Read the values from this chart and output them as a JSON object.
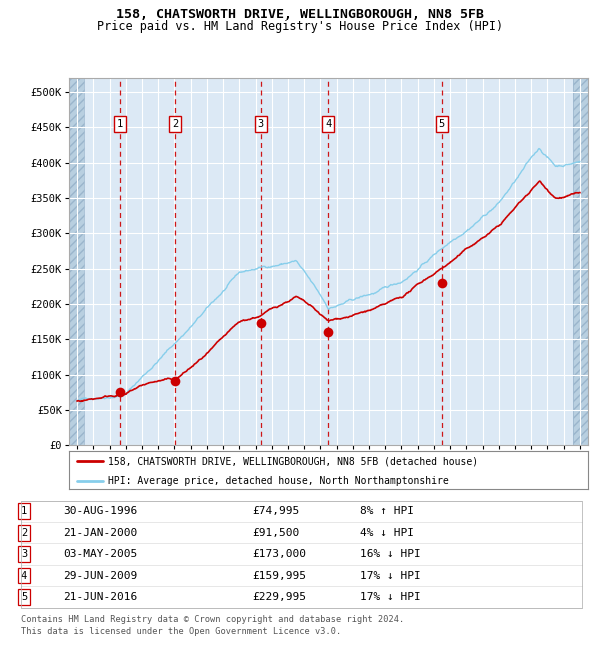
{
  "title1": "158, CHATSWORTH DRIVE, WELLINGBOROUGH, NN8 5FB",
  "title2": "Price paid vs. HM Land Registry's House Price Index (HPI)",
  "legend_line1": "158, CHATSWORTH DRIVE, WELLINGBOROUGH, NN8 5FB (detached house)",
  "legend_line2": "HPI: Average price, detached house, North Northamptonshire",
  "footer1": "Contains HM Land Registry data © Crown copyright and database right 2024.",
  "footer2": "This data is licensed under the Open Government Licence v3.0.",
  "sale_dates_num": [
    1996.66,
    2000.05,
    2005.33,
    2009.49,
    2016.47
  ],
  "sale_prices": [
    74995,
    91500,
    173000,
    159995,
    229995
  ],
  "sale_labels": [
    "1",
    "2",
    "3",
    "4",
    "5"
  ],
  "sale_date_strs": [
    "30-AUG-1996",
    "21-JAN-2000",
    "03-MAY-2005",
    "29-JUN-2009",
    "21-JUN-2016"
  ],
  "sale_price_strs": [
    "£74,995",
    "£91,500",
    "£173,000",
    "£159,995",
    "£229,995"
  ],
  "sale_hpi_strs": [
    "8% ↑ HPI",
    "4% ↓ HPI",
    "16% ↓ HPI",
    "17% ↓ HPI",
    "17% ↓ HPI"
  ],
  "hpi_color": "#87CEEB",
  "price_color": "#CC0000",
  "plot_bg": "#dce9f5",
  "hatch_color": "#b8cfe0",
  "grid_color": "#ffffff",
  "ylim": [
    0,
    520000
  ],
  "xlim_start": 1993.5,
  "xlim_end": 2025.5,
  "yticks": [
    0,
    50000,
    100000,
    150000,
    200000,
    250000,
    300000,
    350000,
    400000,
    450000,
    500000
  ],
  "ytick_labels": [
    "£0",
    "£50K",
    "£100K",
    "£150K",
    "£200K",
    "£250K",
    "£300K",
    "£350K",
    "£400K",
    "£450K",
    "£500K"
  ]
}
